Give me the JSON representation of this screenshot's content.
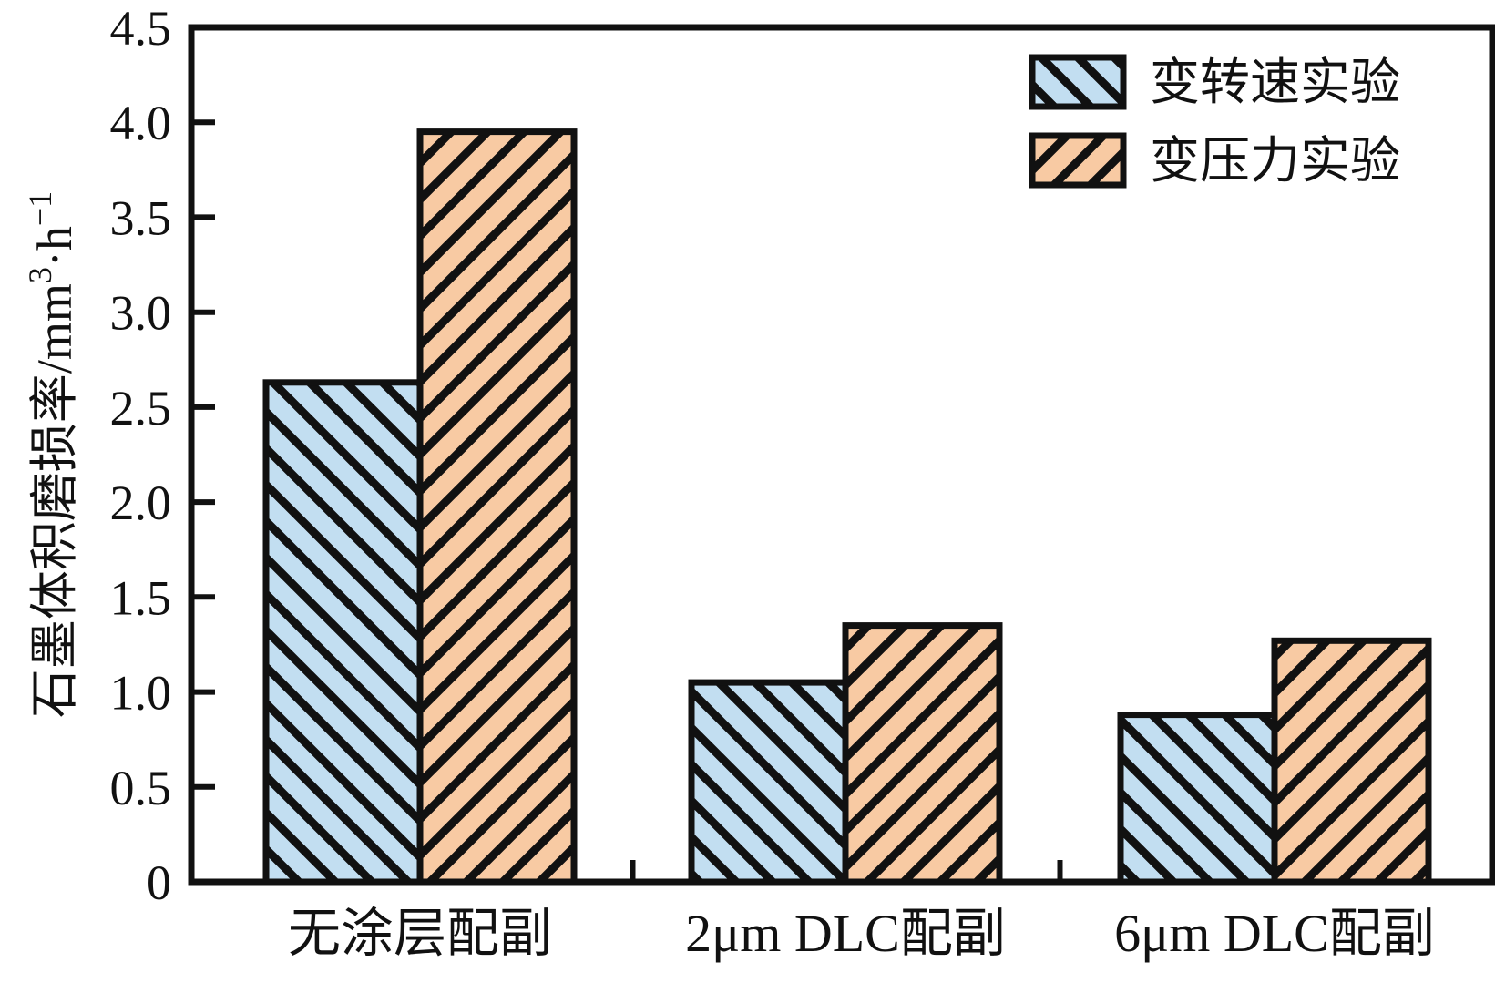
{
  "figure": {
    "background": "#ffffff",
    "line_color": "#111111"
  },
  "chart_data": {
    "type": "bar",
    "categories": [
      "无涂层配副",
      "2μm DLC配副",
      "6μm DLC配副"
    ],
    "series": [
      {
        "id": "variable-speed",
        "name": "变转速实验",
        "values": [
          2.63,
          1.05,
          0.88
        ],
        "fill": "#c2def1",
        "hatch": "backslash"
      },
      {
        "id": "variable-pressure",
        "name": "变压力实验",
        "values": [
          3.95,
          1.35,
          1.27
        ],
        "fill": "#f8caa3",
        "hatch": "slash"
      }
    ],
    "title": "",
    "xlabel": "",
    "ylabel": "石墨体积磨损率/mm³·h⁻¹",
    "ylabel_parts": [
      {
        "t": "石墨体积磨损率/mm"
      },
      {
        "t": "3",
        "sup": true
      },
      {
        "t": "·h"
      },
      {
        "t": "−1",
        "sup": true
      }
    ],
    "ylim": [
      0,
      4.5
    ],
    "ytick_step": 0.5,
    "yticks": [
      "0",
      "0.5",
      "1.0",
      "1.5",
      "2.0",
      "2.5",
      "3.0",
      "3.5",
      "4.0",
      "4.5"
    ],
    "grid": false,
    "legend_position": "top-right",
    "line_color": "#111111"
  }
}
